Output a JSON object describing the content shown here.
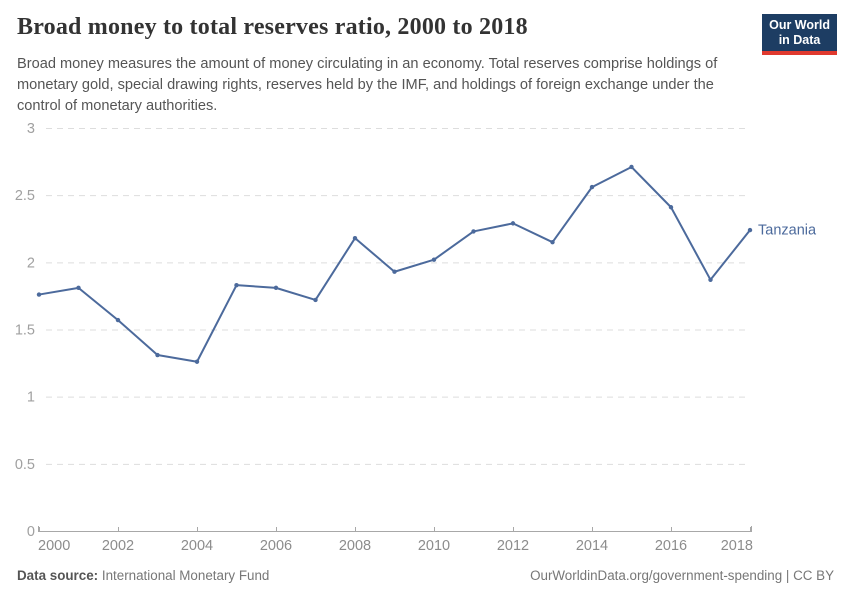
{
  "header": {
    "title": "Broad money to total reserves ratio, 2000 to 2018",
    "subtitle": "Broad money measures the amount of money circulating in an economy. Total reserves comprise holdings of monetary gold, special drawing rights, reserves held by the IMF, and holdings of foreign exchange under the control of monetary authorities.",
    "logo": {
      "line1": "Our World",
      "line2": "in Data"
    }
  },
  "chart_data": {
    "type": "line",
    "title": "Broad money to total reserves ratio, 2000 to 2018",
    "x": [
      2000,
      2001,
      2002,
      2003,
      2004,
      2005,
      2006,
      2007,
      2008,
      2009,
      2010,
      2011,
      2012,
      2013,
      2014,
      2015,
      2016,
      2017,
      2018
    ],
    "series": [
      {
        "name": "Tanzania",
        "color": "#4C6A9C",
        "values": [
          1.76,
          1.81,
          1.57,
          1.31,
          1.26,
          1.83,
          1.81,
          1.72,
          2.18,
          1.93,
          2.02,
          2.23,
          2.29,
          2.15,
          2.56,
          2.71,
          2.41,
          1.87,
          2.24
        ]
      }
    ],
    "xlabel": "",
    "ylabel": "",
    "ylim": [
      0,
      3
    ],
    "yticks": [
      0,
      0.5,
      1,
      1.5,
      2,
      2.5,
      3
    ],
    "xticks": [
      2000,
      2002,
      2004,
      2006,
      2008,
      2010,
      2012,
      2014,
      2016,
      2018
    ],
    "grid": "horizontal-dashed",
    "legend": "end-of-line-label"
  },
  "footer": {
    "source_label": "Data source:",
    "source_value": "International Monetary Fund",
    "right_text": "OurWorldinData.org/government-spending | CC BY"
  },
  "colors": {
    "line": "#4C6A9C",
    "grid": "#dddddd",
    "axis": "#a8a8a8",
    "y_tick_label": "#a0a0a0",
    "x_tick_label": "#8c8c8c",
    "logo_bg": "#1d3d63",
    "logo_accent": "#e0392e",
    "title": "#333333",
    "subtitle": "#555555"
  }
}
